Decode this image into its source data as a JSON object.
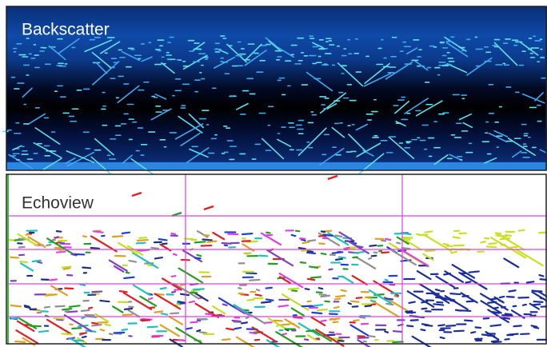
{
  "panels": [
    {
      "label": "Backscatter"
    },
    {
      "label": "Echoview"
    }
  ]
}
